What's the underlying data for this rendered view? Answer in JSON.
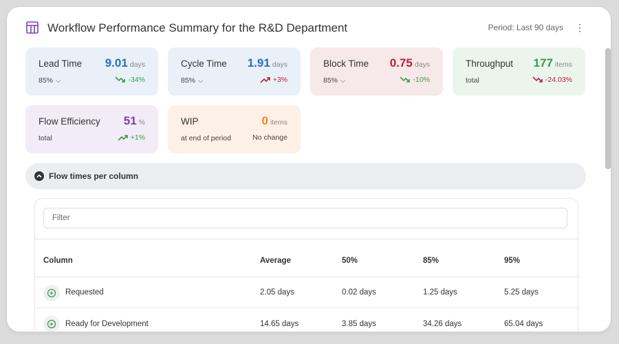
{
  "header": {
    "title": "Workflow Performance Summary for the R&D Department",
    "period": "Period: Last 90 days",
    "menu": "⋮"
  },
  "cards": {
    "lead": {
      "label": "Lead Time",
      "value": "9.01",
      "unit": "days",
      "sub": "85%",
      "trend": "-34%",
      "color": "#2a6fbd"
    },
    "cycle": {
      "label": "Cycle Time",
      "value": "1.91",
      "unit": "days",
      "sub": "85%",
      "trend": "+3%",
      "color": "#2a6fbd"
    },
    "block": {
      "label": "Block Time",
      "value": "0.75",
      "unit": "days",
      "sub": "85%",
      "trend": "-10%",
      "color": "#b8203a"
    },
    "throughput": {
      "label": "Throughput",
      "value": "177",
      "unit": "items",
      "sub": "total",
      "trend": "-24.03%",
      "color": "#3a9a4a"
    },
    "flow": {
      "label": "Flow Efficiency",
      "value": "51",
      "unit": "%",
      "sub": "total",
      "trend": "+1%",
      "color": "#7a3fb8"
    },
    "wip": {
      "label": "WIP",
      "value": "0",
      "unit": "items",
      "sub": "at end of period",
      "trend": "No change",
      "color": "#e8892a"
    }
  },
  "section": {
    "label": "Flow times per column"
  },
  "filter": {
    "placeholder": "Filter"
  },
  "table": {
    "headers": [
      "Column",
      "Average",
      "50%",
      "85%",
      "95%"
    ],
    "rows": [
      {
        "name": "Requested",
        "avg": "2.05 days",
        "p50": "0.02 days",
        "p85": "1.25 days",
        "p95": "5.25 days"
      },
      {
        "name": "Ready for Development",
        "avg": "14.65 days",
        "p50": "3.85 days",
        "p85": "34.26 days",
        "p95": "65.04 days"
      }
    ]
  }
}
